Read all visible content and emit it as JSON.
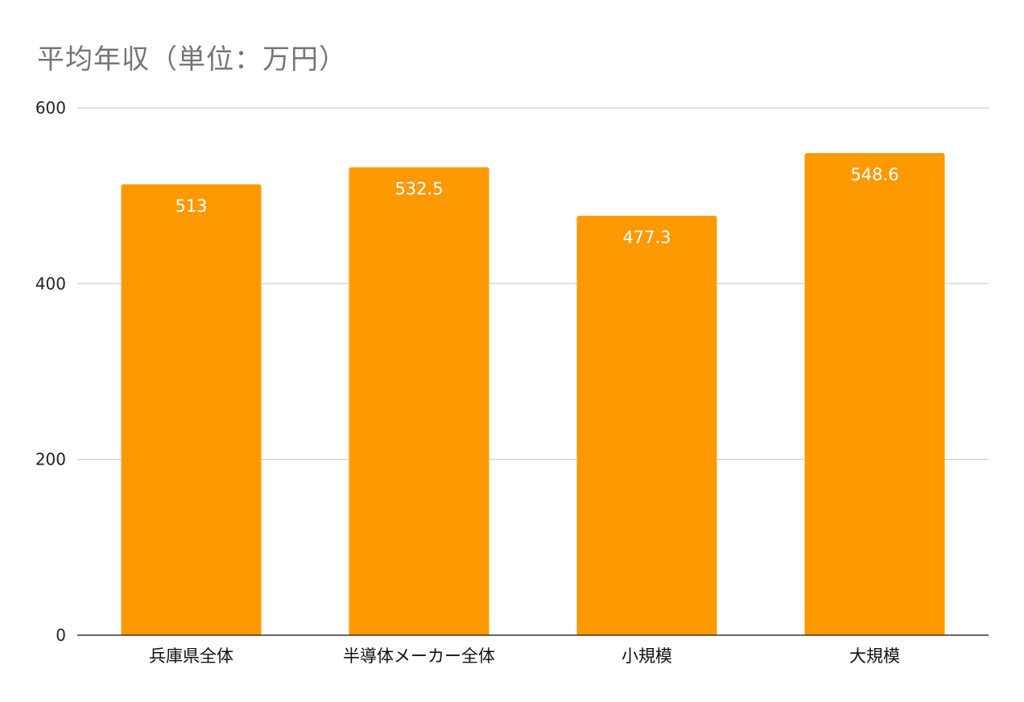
{
  "chart_data": {
    "type": "bar",
    "title": "平均年収（単位：万円）",
    "categories": [
      "兵庫県全体",
      "半導体メーカー全体",
      "小規模",
      "大規模"
    ],
    "values": [
      513,
      532.5,
      477.3,
      548.6
    ],
    "data_labels": [
      "513",
      "532.5",
      "477.3",
      "548.6"
    ],
    "yticks": [
      0,
      200,
      400,
      600
    ],
    "ytick_labels": [
      "0",
      "200",
      "400",
      "600"
    ],
    "ylim": [
      0,
      600
    ],
    "xlabel": "",
    "ylabel": "",
    "grid": true,
    "legend": "none",
    "bar_color": "#FF9900",
    "grid_color": "#CCCCCC",
    "axis_color": "#333333"
  }
}
